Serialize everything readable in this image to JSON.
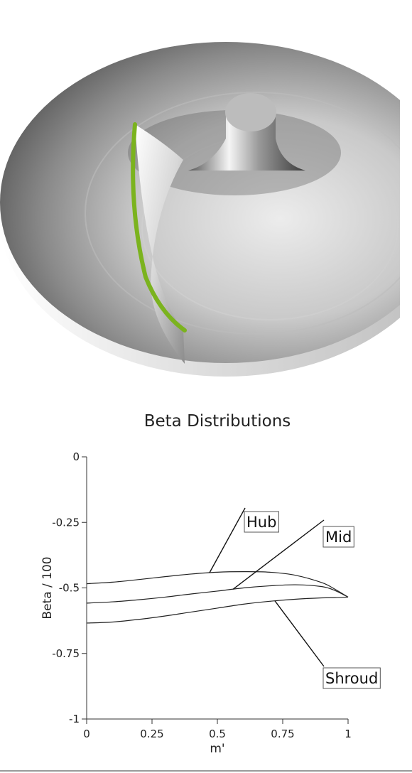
{
  "chart_data": {
    "type": "line",
    "title": "Beta Distributions",
    "xlabel": "m'",
    "ylabel": "Beta / 100",
    "xlim": [
      0,
      1
    ],
    "ylim": [
      -1,
      0
    ],
    "x_ticks": [
      "0",
      "0.25",
      "0.5",
      "0.75",
      "1"
    ],
    "y_ticks": [
      "0",
      "-0.25",
      "-0.5",
      "-0.75",
      "-1"
    ],
    "series": [
      {
        "name": "Hub",
        "x": [
          0,
          0.1,
          0.2,
          0.3,
          0.4,
          0.5,
          0.6,
          0.7,
          0.8,
          0.9,
          0.95,
          1.0
        ],
        "y": [
          -0.484,
          -0.478,
          -0.468,
          -0.457,
          -0.447,
          -0.44,
          -0.438,
          -0.44,
          -0.452,
          -0.48,
          -0.505,
          -0.535
        ]
      },
      {
        "name": "Mid",
        "x": [
          0,
          0.1,
          0.2,
          0.3,
          0.4,
          0.5,
          0.6,
          0.7,
          0.8,
          0.9,
          0.95,
          1.0
        ],
        "y": [
          -0.558,
          -0.553,
          -0.545,
          -0.535,
          -0.523,
          -0.512,
          -0.5,
          -0.492,
          -0.488,
          -0.495,
          -0.51,
          -0.535
        ]
      },
      {
        "name": "Shroud",
        "x": [
          0,
          0.1,
          0.2,
          0.3,
          0.4,
          0.5,
          0.6,
          0.7,
          0.8,
          0.9,
          0.95,
          1.0
        ],
        "y": [
          -0.634,
          -0.63,
          -0.62,
          -0.607,
          -0.592,
          -0.577,
          -0.562,
          -0.551,
          -0.543,
          -0.538,
          -0.537,
          -0.535
        ]
      }
    ],
    "annotations": [
      {
        "text": "Hub",
        "series": "Hub",
        "point_x": 0.47
      },
      {
        "text": "Mid",
        "series": "Mid",
        "point_x": 0.56
      },
      {
        "text": "Shroud",
        "series": "Shroud",
        "point_x": 0.72
      }
    ],
    "grid": false,
    "colors": {
      "line": "#222222",
      "axis": "#333333",
      "label_box": "#555555"
    }
  },
  "render": {
    "colors": {
      "disc_light": "#e6e6e6",
      "disc_dark": "#4a4a4a",
      "blade": "#f2f2f2",
      "edge_highlight": "#7bb31e"
    }
  }
}
